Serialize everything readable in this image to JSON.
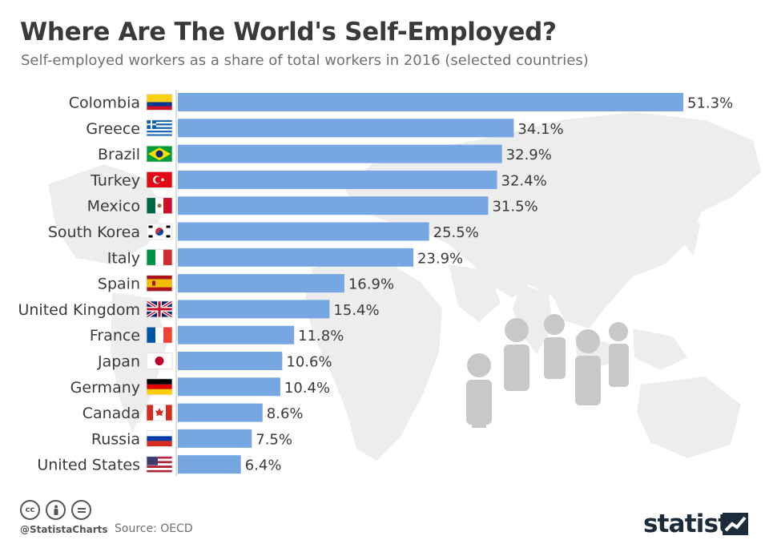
{
  "header": {
    "title": "Where Are The World's Self-Employed?",
    "subtitle": "Self-employed workers as a share of total workers in 2016 (selected countries)"
  },
  "chart_data": {
    "type": "bar",
    "orientation": "horizontal",
    "categories": [
      "Colombia",
      "Greece",
      "Brazil",
      "Turkey",
      "Mexico",
      "South Korea",
      "Italy",
      "Spain",
      "United Kingdom",
      "France",
      "Japan",
      "Germany",
      "Canada",
      "Russia",
      "United States"
    ],
    "values": [
      51.3,
      34.1,
      32.9,
      32.4,
      31.5,
      25.5,
      23.9,
      16.9,
      15.4,
      11.8,
      10.6,
      10.4,
      8.6,
      7.5,
      6.4
    ],
    "value_labels": [
      "51.3%",
      "34.1%",
      "32.9%",
      "32.4%",
      "31.5%",
      "25.5%",
      "23.9%",
      "16.9%",
      "15.4%",
      "11.8%",
      "10.6%",
      "10.4%",
      "8.6%",
      "7.5%",
      "6.4%"
    ],
    "flags": [
      "colombia-flag",
      "greece-flag",
      "brazil-flag",
      "turkey-flag",
      "mexico-flag",
      "south-korea-flag",
      "italy-flag",
      "spain-flag",
      "united-kingdom-flag",
      "france-flag",
      "japan-flag",
      "germany-flag",
      "canada-flag",
      "russia-flag",
      "united-states-flag"
    ],
    "unit": "%",
    "xlim": [
      0,
      51.3
    ],
    "grid": false,
    "bar_color": "#77a7e2"
  },
  "footer": {
    "handle": "@StatistaCharts",
    "source": "Source: OECD",
    "brand": "statista",
    "license_icons": [
      "cc-icon",
      "by-icon",
      "nd-icon"
    ]
  },
  "colors": {
    "title": "#3a3a3a",
    "subtitle": "#707070",
    "map": "#ececec",
    "people": "#c7c7c7",
    "brand": "#1c2b3a"
  }
}
